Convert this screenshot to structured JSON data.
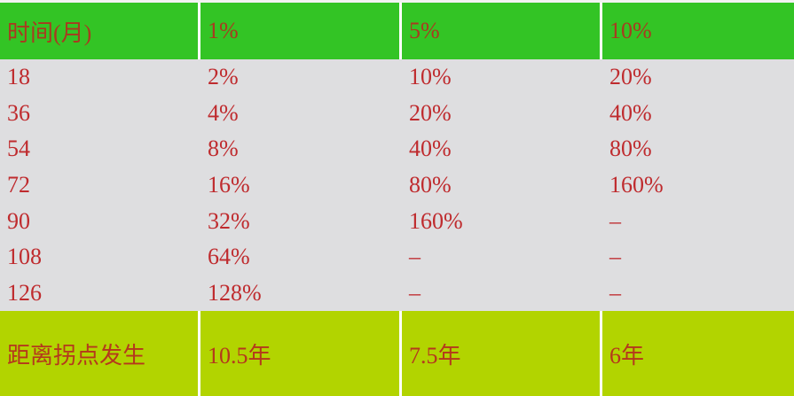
{
  "chart_data": {
    "type": "table",
    "title": "",
    "columns": [
      "时间(月)",
      "1%",
      "5%",
      "10%"
    ],
    "rows": [
      [
        "18",
        "2%",
        "10%",
        "20%"
      ],
      [
        "36",
        "4%",
        "20%",
        "40%"
      ],
      [
        "54",
        "8%",
        "40%",
        "80%"
      ],
      [
        "72",
        "16%",
        "80%",
        "160%"
      ],
      [
        "90",
        "32%",
        "160%",
        "–"
      ],
      [
        "108",
        "64%",
        "–",
        "–"
      ],
      [
        "126",
        "128%",
        "–",
        "–"
      ]
    ],
    "footer": [
      "距离拐点发生",
      "10.5年",
      "7.5年",
      "6年"
    ],
    "layout": {
      "header_position": "top",
      "footer_position": "bottom",
      "column_separators": "white lines in header and footer only",
      "grid": "off in body"
    }
  },
  "colors": {
    "header_bg": "#33c425",
    "body_bg": "#dedee0",
    "footer_bg": "#b2d400",
    "text_red": "#bf2b2e",
    "separator": "#ffffff"
  }
}
